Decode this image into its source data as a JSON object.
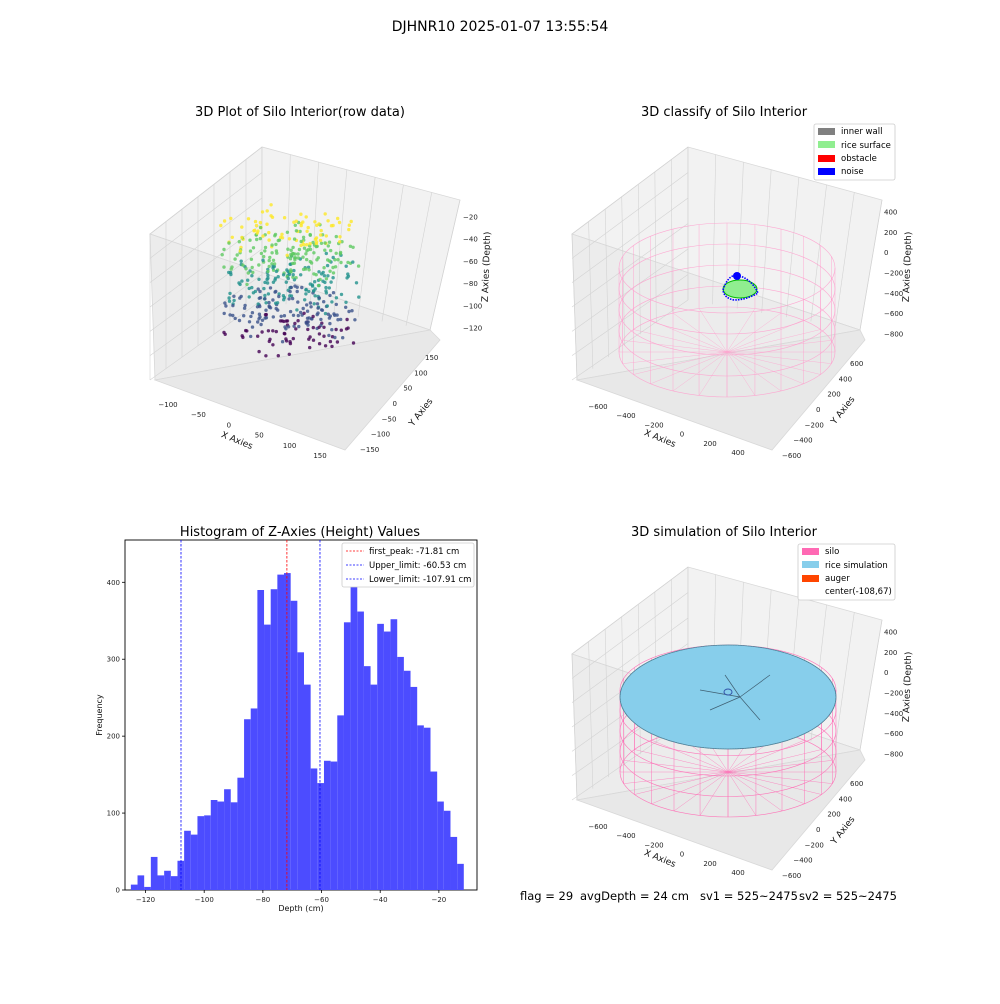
{
  "figure": {
    "suptitle": "DJHNR10 2025-01-07 13:55:54",
    "status_line": {
      "flag": "flag = 29",
      "avg_depth": "avgDepth = 24 cm",
      "sv1": "sv1 = 525~2475",
      "sv2": "sv2 = 525~2475"
    }
  },
  "colors": {
    "hist_bar": "#4c4cff",
    "first_peak_line": "#ff0000",
    "limit_line": "#0000ff",
    "inner_wall": "#808080",
    "rice_surface": "#90ee90",
    "obstacle": "#ff0000",
    "noise": "#0000ff",
    "silo": "#ff69b4",
    "rice_simulation": "#87ceeb",
    "auger": "#ff4500",
    "silo_wire": "#ff9ccc"
  },
  "chart_data": [
    {
      "type": "scatter",
      "title": "3D Plot of Silo Interior(row data)",
      "xlabel": "X Axies",
      "ylabel": "Y Axies",
      "zlabel": "Z Axies (Depth)",
      "xticks": [
        "−100",
        "−50",
        "0",
        "50",
        "100",
        "150"
      ],
      "yticks": [
        "−150",
        "−100",
        "−50",
        "0",
        "50",
        "100",
        "150"
      ],
      "zticks": [
        "−120",
        "−100",
        "−80",
        "−60",
        "−40",
        "−20"
      ],
      "colormap": "viridis"
    },
    {
      "type": "scatter",
      "title": "3D classify of Silo Interior",
      "xlabel": "X Axies",
      "ylabel": "Y Axies",
      "zlabel": "Z Axies (Depth)",
      "xticks": [
        "−600",
        "−400",
        "−200",
        "0",
        "200",
        "400"
      ],
      "yticks": [
        "−600",
        "−400",
        "−200",
        "0",
        "200",
        "400",
        "600"
      ],
      "zticks": [
        "−800",
        "−600",
        "−400",
        "−200",
        "0",
        "200",
        "400"
      ],
      "legend": {
        "position": "upper right",
        "entries": [
          "inner wall",
          "rice surface",
          "obstacle",
          "noise"
        ]
      }
    },
    {
      "type": "bar",
      "title": "Histogram of Z-Axies (Height) Values",
      "xlabel": "Depth (cm)",
      "ylabel": "Frequency",
      "xlim": [
        -127,
        -7
      ],
      "ylim": [
        0,
        455
      ],
      "xticks": [
        -120,
        -100,
        -80,
        -60,
        -40,
        -20
      ],
      "xtick_labels": [
        "−120",
        "−100",
        "−80",
        "−60",
        "−40",
        "−20"
      ],
      "yticks": [
        0,
        100,
        200,
        300,
        400
      ],
      "yticks_labels": [
        "0",
        "100",
        "200",
        "300",
        "400"
      ],
      "bin_start": -125.0,
      "bin_width": 2.27,
      "values": [
        7,
        19,
        4,
        43,
        19,
        25,
        18,
        38,
        77,
        72,
        96,
        97,
        117,
        115,
        131,
        114,
        146,
        222,
        236,
        390,
        345,
        391,
        410,
        412,
        376,
        309,
        267,
        158,
        139,
        168,
        167,
        227,
        348,
        431,
        362,
        291,
        267,
        346,
        336,
        352,
        303,
        285,
        264,
        214,
        211,
        154,
        115,
        103,
        69,
        34
      ],
      "vlines": [
        {
          "name": "first_peak",
          "x": -71.81,
          "style": "dashed",
          "color": "red"
        },
        {
          "name": "Upper_limit",
          "x": -60.53,
          "style": "dashed",
          "color": "blue"
        },
        {
          "name": "Lower_limit",
          "x": -107.91,
          "style": "dashed",
          "color": "blue"
        }
      ],
      "legend": {
        "position": "upper right",
        "entries": [
          "first_peak: -71.81 cm",
          "Upper_limit: -60.53 cm",
          "Lower_limit: -107.91 cm"
        ]
      }
    },
    {
      "type": "area",
      "title": "3D simulation of Silo Interior",
      "xlabel": "X Axies",
      "ylabel": "Y Axies",
      "zlabel": "Z Axies (Depth)",
      "xticks": [
        "−600",
        "−400",
        "−200",
        "0",
        "200",
        "400"
      ],
      "yticks": [
        "−600",
        "−400",
        "−200",
        "0",
        "200",
        "400",
        "600"
      ],
      "zticks": [
        "−800",
        "−600",
        "−400",
        "−200",
        "0",
        "200",
        "400"
      ],
      "legend": {
        "position": "upper right",
        "entries": [
          "silo",
          "rice simulation",
          "auger",
          "center(-108,67)"
        ]
      }
    }
  ]
}
